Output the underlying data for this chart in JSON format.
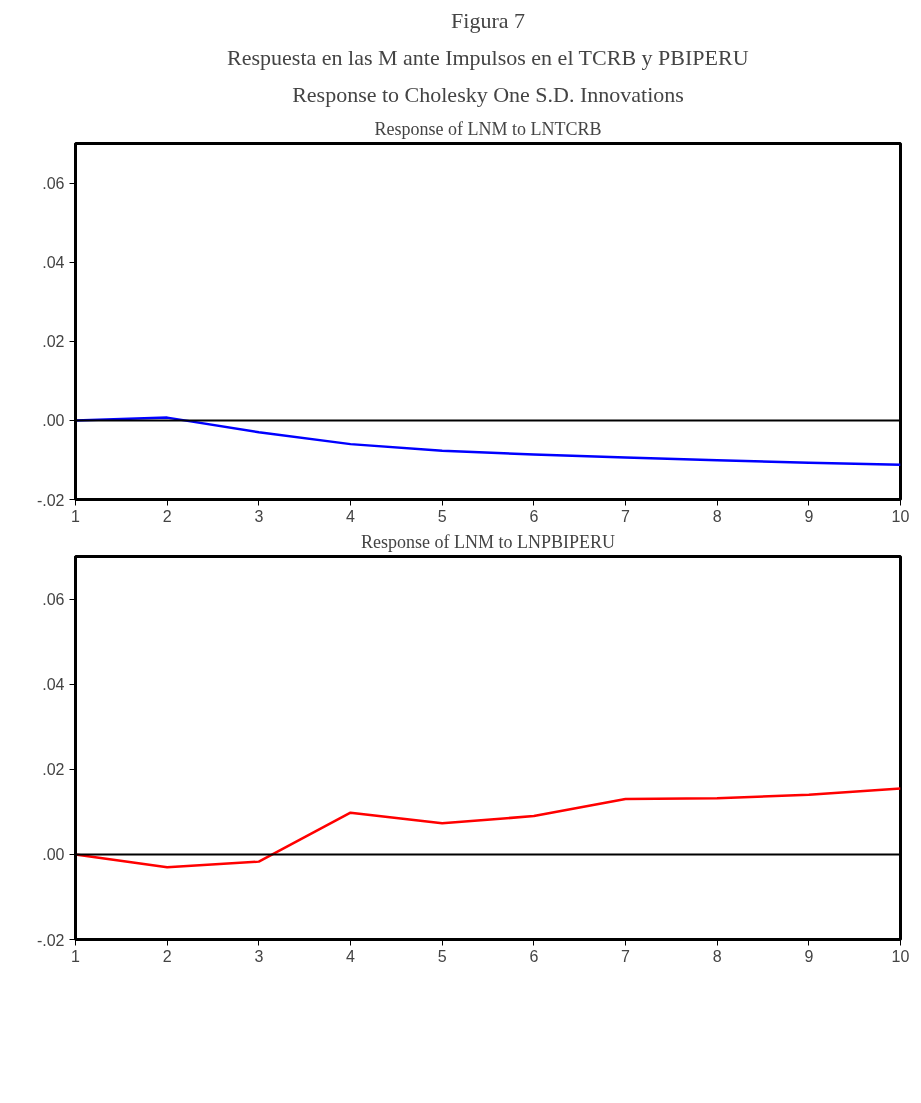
{
  "chart_data": [
    {
      "type": "line",
      "title": "Response of LNM to LNTCRB",
      "annotations": [
        "Figura 7",
        "Respuesta en las M ante Impulsos en el TCRB y PBIPERU",
        "Response to Cholesky One S.D. Innovations"
      ],
      "x": [
        1,
        2,
        3,
        4,
        5,
        6,
        7,
        8,
        9,
        10
      ],
      "xlim": [
        1,
        10
      ],
      "xticks": [
        1,
        2,
        3,
        4,
        5,
        6,
        7,
        8,
        9,
        10
      ],
      "ylim": [
        -0.02,
        0.07
      ],
      "yticks": [
        {
          "value": -0.02,
          "label": "-.02"
        },
        {
          "value": 0,
          "label": ".00"
        },
        {
          "value": 0.02,
          "label": ".02"
        },
        {
          "value": 0.04,
          "label": ".04"
        },
        {
          "value": 0.06,
          "label": ".06"
        }
      ],
      "grid": false,
      "ref_lines": [
        {
          "axis": "y",
          "value": 0,
          "color": "#000000"
        }
      ],
      "series": [
        {
          "color": "#0000ff",
          "values": [
            0,
            0.0007,
            -0.003,
            -0.006,
            -0.0077,
            -0.0086,
            -0.0094,
            -0.0101,
            -0.0107,
            -0.0112
          ]
        }
      ]
    },
    {
      "type": "line",
      "title": "Response of LNM to LNPBIPERU",
      "x": [
        1,
        2,
        3,
        4,
        5,
        6,
        7,
        8,
        9,
        10
      ],
      "xlim": [
        1,
        10
      ],
      "xticks": [
        1,
        2,
        3,
        4,
        5,
        6,
        7,
        8,
        9,
        10
      ],
      "ylim": [
        -0.02,
        0.07
      ],
      "yticks": [
        {
          "value": -0.02,
          "label": "-.02"
        },
        {
          "value": 0,
          "label": ".00"
        },
        {
          "value": 0.02,
          "label": ".02"
        },
        {
          "value": 0.04,
          "label": ".04"
        },
        {
          "value": 0.06,
          "label": ".06"
        }
      ],
      "grid": false,
      "ref_lines": [
        {
          "axis": "y",
          "value": 0,
          "color": "#000000"
        }
      ],
      "series": [
        {
          "color": "#ff0000",
          "values": [
            0,
            -0.003,
            -0.0017,
            0.0098,
            0.0073,
            0.009,
            0.013,
            0.0132,
            0.014,
            0.0155
          ]
        }
      ]
    }
  ]
}
